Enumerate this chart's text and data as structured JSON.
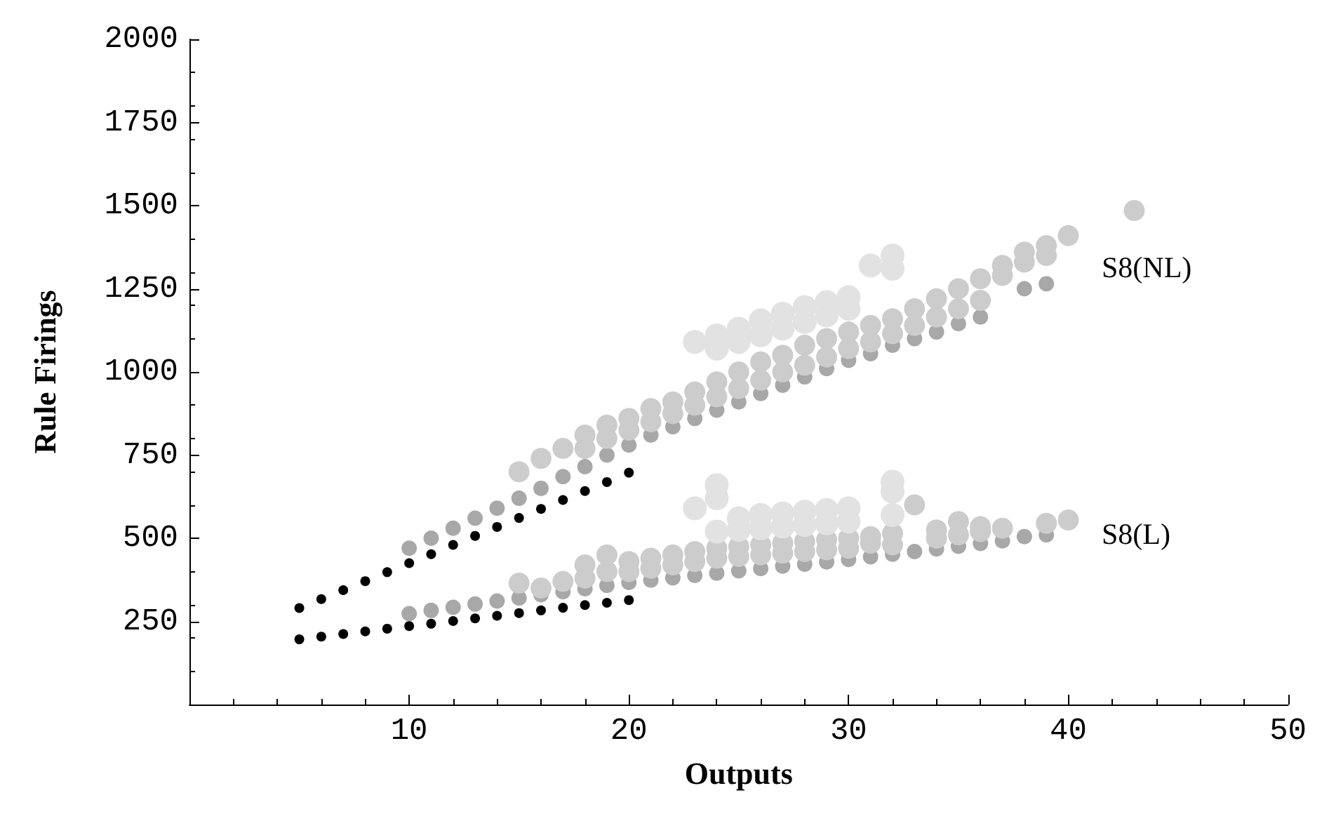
{
  "chart_data": {
    "type": "scatter",
    "xlabel": "Outputs",
    "ylabel": "Rule Firings",
    "xlim": [
      0,
      50
    ],
    "ylim": [
      0,
      2000
    ],
    "xticks": [
      10,
      20,
      30,
      40,
      50
    ],
    "yticks": [
      250,
      500,
      750,
      1000,
      1250,
      1500,
      1750,
      2000
    ],
    "grid": false,
    "marker": "circle",
    "annotations": [
      "S8(NL)",
      "S8(L)"
    ],
    "series": [
      {
        "color": "#a8a8a8",
        "x": [
          10,
          11,
          12,
          13,
          14,
          15,
          16,
          17,
          18,
          19,
          20,
          21,
          22,
          23,
          24,
          25,
          26,
          27,
          28,
          29,
          30,
          31,
          32,
          33,
          34,
          35,
          36,
          38,
          39,
          10,
          11,
          12,
          13,
          14,
          15,
          16,
          17,
          18,
          19,
          20,
          21,
          22,
          23,
          24,
          25,
          26,
          27,
          28,
          29,
          30,
          31,
          32,
          33,
          34,
          35,
          36,
          37,
          38,
          39
        ],
        "values": [
          470,
          500,
          530,
          560,
          590,
          620,
          650,
          685,
          715,
          750,
          780,
          810,
          835,
          860,
          885,
          910,
          935,
          960,
          985,
          1010,
          1035,
          1055,
          1080,
          1100,
          1120,
          1145,
          1165,
          1250,
          1265,
          273,
          283,
          292,
          302,
          311,
          320,
          330,
          339,
          348,
          358,
          367,
          374,
          381,
          388,
          395,
          402,
          409,
          416,
          422,
          429,
          436,
          444,
          452,
          460,
          468,
          476,
          484,
          492,
          505,
          510
        ]
      },
      {
        "color": "#cccccc",
        "x": [
          15,
          16,
          17,
          18,
          19,
          20,
          21,
          22,
          23,
          24,
          25,
          26,
          27,
          28,
          29,
          30,
          31,
          32,
          33,
          34,
          35,
          36,
          37,
          38,
          39,
          40,
          43,
          18,
          19,
          20,
          21,
          22,
          23,
          24,
          25,
          26,
          27,
          28,
          29,
          30,
          31,
          32,
          33,
          34,
          35,
          36,
          37,
          38,
          39,
          15,
          16,
          17,
          18,
          19,
          20,
          21,
          22,
          23,
          24,
          25,
          26,
          27,
          28,
          29,
          30,
          31,
          32,
          33,
          34,
          35,
          36,
          37,
          39,
          40,
          18,
          19,
          20,
          21,
          22,
          23,
          24,
          25,
          26,
          27,
          28,
          29,
          30,
          31,
          32,
          34,
          35,
          36
        ],
        "values": [
          700,
          740,
          770,
          810,
          840,
          860,
          890,
          910,
          940,
          970,
          1000,
          1030,
          1050,
          1080,
          1100,
          1120,
          1140,
          1160,
          1190,
          1220,
          1250,
          1280,
          1320,
          1360,
          1380,
          1410,
          1485,
          770,
          800,
          825,
          850,
          875,
          900,
          925,
          950,
          975,
          1000,
          1020,
          1045,
          1070,
          1090,
          1115,
          1140,
          1165,
          1190,
          1215,
          1290,
          1330,
          1350,
          365,
          350,
          370,
          420,
          450,
          430,
          440,
          450,
          460,
          470,
          475,
          480,
          485,
          490,
          495,
          500,
          505,
          515,
          600,
          525,
          550,
          535,
          530,
          545,
          555,
          380,
          400,
          400,
          410,
          420,
          430,
          440,
          445,
          450,
          455,
          460,
          465,
          470,
          485,
          480,
          500,
          510,
          520
        ]
      },
      {
        "color": "#e2e2e2",
        "x": [
          23,
          24,
          25,
          26,
          27,
          28,
          29,
          30,
          31,
          32,
          24,
          25,
          26,
          27,
          28,
          29,
          30,
          32,
          23,
          24,
          24,
          25,
          26,
          27,
          28,
          29,
          30,
          32,
          32,
          24,
          25,
          26,
          27,
          28,
          29,
          30,
          32
        ],
        "values": [
          1090,
          1110,
          1130,
          1155,
          1175,
          1195,
          1210,
          1225,
          1320,
          1350,
          1070,
          1090,
          1110,
          1130,
          1150,
          1170,
          1190,
          1310,
          590,
          660,
          620,
          560,
          570,
          575,
          580,
          585,
          590,
          670,
          640,
          520,
          525,
          530,
          535,
          540,
          545,
          550,
          570
        ]
      },
      {
        "color": "#000000",
        "x": [
          5,
          6,
          7,
          8,
          9,
          10,
          11,
          12,
          13,
          14,
          15,
          16,
          17,
          18,
          19,
          20,
          5,
          6,
          7,
          8,
          9,
          10,
          11,
          12,
          13,
          14,
          15,
          16,
          17,
          18,
          19,
          20
        ],
        "values": [
          290,
          317,
          344,
          371,
          398,
          425,
          452,
          480,
          507,
          534,
          561,
          588,
          615,
          642,
          669,
          697,
          196,
          204,
          212,
          220,
          228,
          236,
          243,
          251,
          259,
          267,
          275,
          283,
          291,
          299,
          306,
          314
        ]
      }
    ]
  }
}
